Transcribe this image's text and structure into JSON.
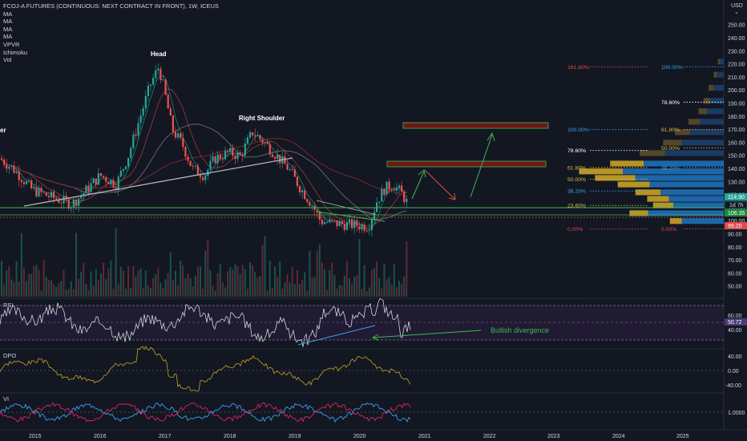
{
  "legend": {
    "symbol": "FCOJ-A FUTURES (CONTINUOUS: NEXT CONTRACT IN FRONT), 1W, ICEUS",
    "indicators": [
      "MA",
      "MA",
      "MA",
      "MA",
      "VPVR",
      "Ichimoku",
      "Vol"
    ]
  },
  "currency": "USD",
  "annotations": {
    "head": "Head",
    "right_shoulder": "Right Shoulder",
    "left_shoulder_partial": "er",
    "bullish_divergence": "Bullish divergence"
  },
  "price_axis": {
    "ticks": [
      "250.00",
      "240.00",
      "230.00",
      "220.00",
      "210.00",
      "200.00",
      "190.00",
      "180.00",
      "170.00",
      "160.00",
      "150.00",
      "140.00",
      "130.00",
      "120.00",
      "110.00",
      "100.00",
      "90.00",
      "80.00",
      "70.00",
      "60.00",
      "50.00"
    ],
    "last_price": "114.90",
    "timeframe_label": "1d 7h",
    "price_b": "106.35",
    "price_c": "99.20"
  },
  "fib_left": [
    {
      "label": "161.80%",
      "price": 218,
      "color": "#e04b4b"
    },
    {
      "label": "100.00%",
      "price": 170,
      "color": "#3ba2f0"
    },
    {
      "label": "78.60%",
      "price": 154,
      "color": "#ffffff"
    },
    {
      "label": "61.80%",
      "price": 141,
      "color": "#e0b83a"
    },
    {
      "label": "50.00%",
      "price": 132,
      "color": "#e0b83a"
    },
    {
      "label": "38.20%",
      "price": 123,
      "color": "#3ba2f0"
    },
    {
      "label": "23.60%",
      "price": 112,
      "color": "#e0b83a"
    },
    {
      "label": "0.00%",
      "price": 94,
      "color": "#e04b4b"
    }
  ],
  "fib_right": [
    {
      "label": "100.00%",
      "price": 218,
      "color": "#3ba2f0"
    },
    {
      "label": "78.60%",
      "price": 191,
      "color": "#ffffff"
    },
    {
      "label": "61.80%",
      "price": 170,
      "color": "#e0b83a"
    },
    {
      "label": "50.00%",
      "price": 156,
      "color": "#e0b83a"
    },
    {
      "label": "38.20%",
      "price": 141,
      "color": "#3ba2f0"
    },
    {
      "label": "0.00%",
      "price": 94,
      "color": "#e04b4b"
    }
  ],
  "panes": {
    "rsi": {
      "label": "RSI",
      "ticks": [
        "60.00",
        "40.00"
      ],
      "value": "50.72"
    },
    "dpo": {
      "label": "DPO",
      "ticks": [
        "40.00",
        "0.00",
        "-40.00"
      ]
    },
    "vi": {
      "label": "VI",
      "ticks": [
        "1.0000"
      ]
    }
  },
  "x_axis": [
    "2015",
    "2016",
    "2017",
    "2018",
    "2019",
    "2020",
    "2021",
    "2022",
    "2023",
    "2024",
    "2025"
  ],
  "colors": {
    "background": "#131722",
    "up": "#26a69a",
    "down": "#ef5350",
    "support": "#3fb950",
    "vpvr_gold": "#c9a227",
    "vpvr_blue": "#1e6fb8"
  }
}
